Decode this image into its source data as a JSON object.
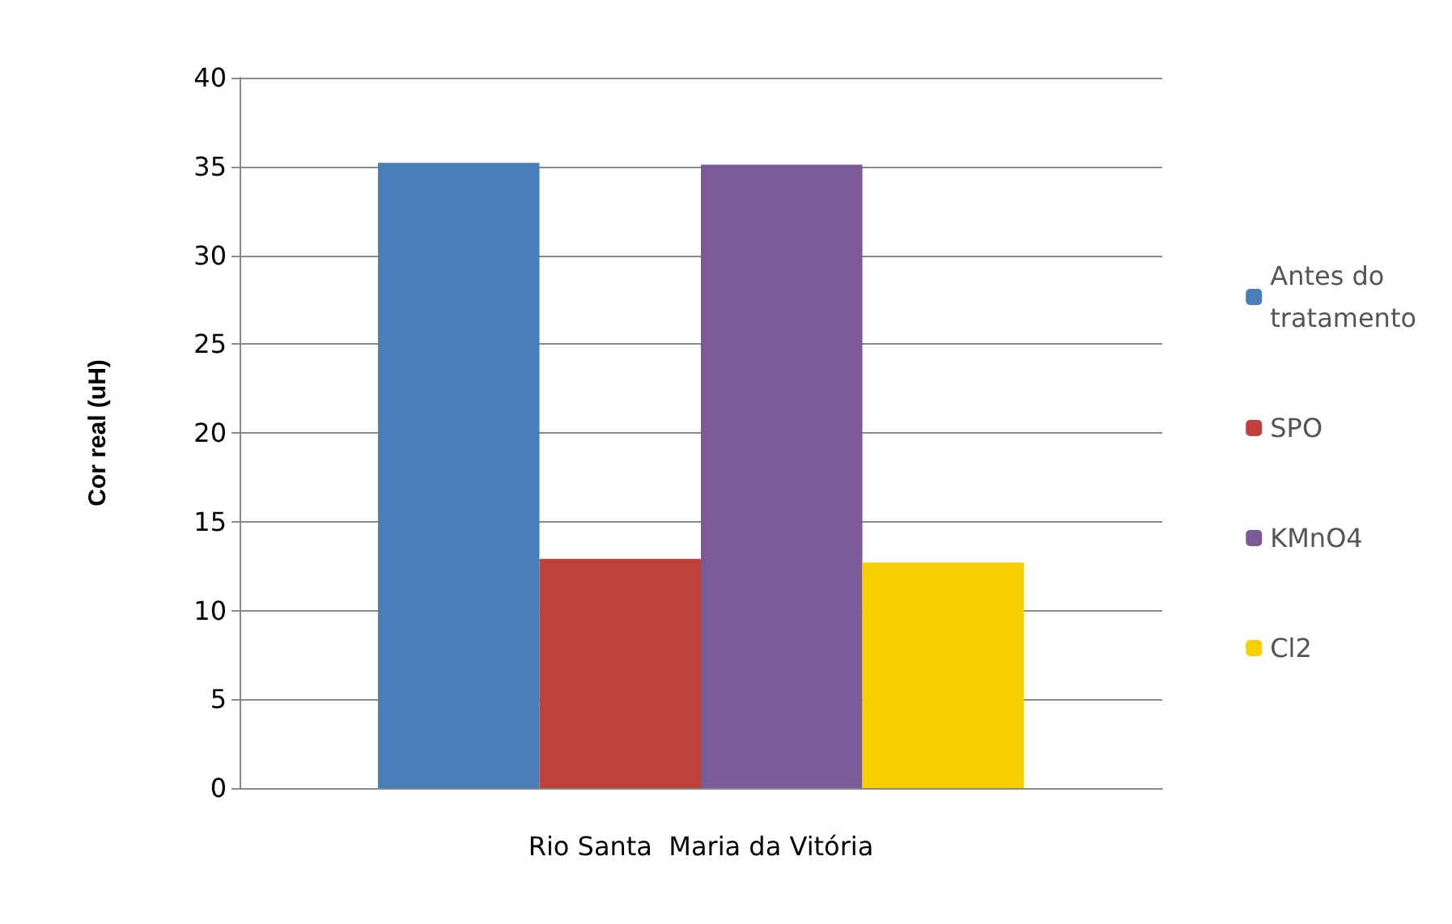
{
  "chart_data": {
    "type": "bar",
    "ylabel": "Cor real (uH)",
    "categories": [
      "Rio Santa  Maria da Vitória"
    ],
    "series": [
      {
        "name": "Antes do\ntratamento",
        "color": "#4a7ebb",
        "values": [
          35.2
        ]
      },
      {
        "name": "SPO",
        "color": "#c0403d",
        "values": [
          12.9
        ]
      },
      {
        "name": "KMnO4",
        "color": "#7b5a9a",
        "values": [
          35.1
        ]
      },
      {
        "name": "Cl2",
        "color": "#f7d000",
        "values": [
          12.7
        ]
      }
    ],
    "ylim": [
      0,
      40
    ],
    "yticks": [
      0,
      5,
      10,
      15,
      20,
      25,
      30,
      35,
      40
    ],
    "grid": "y",
    "legend": "right"
  }
}
